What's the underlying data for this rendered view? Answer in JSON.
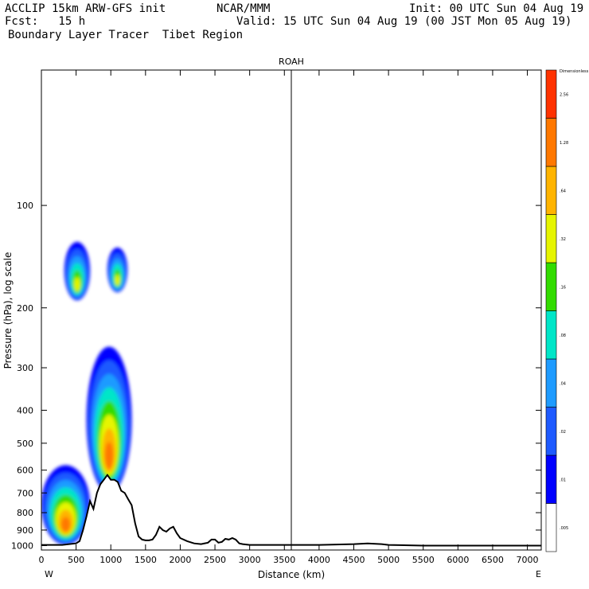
{
  "header": {
    "line1_left": "ACCLIP 15km ARW-GFS init",
    "line1_mid": "NCAR/MMM",
    "line1_right": "Init: 00 UTC Sun 04 Aug 19",
    "line2_left": "Fcst:   15 h",
    "line2_right": "Valid: 15 UTC Sun 04 Aug 19 (00 JST Mon 05 Aug 19)",
    "line3_left": "Boundary Layer Tracer  Tibet Region"
  },
  "chart_data": {
    "type": "heatmap",
    "title": "ROAH",
    "xlabel": "Distance (km)",
    "ylabel": "Pressure (hPa), log scale",
    "xlim": [
      0,
      7200
    ],
    "ylim": [
      1030,
      40
    ],
    "y_scale": "log",
    "x_ticks": [
      0,
      500,
      1000,
      1500,
      2000,
      2500,
      3000,
      3500,
      4000,
      4500,
      5000,
      5500,
      6000,
      6500,
      7000
    ],
    "y_ticks": [
      100,
      200,
      300,
      400,
      500,
      600,
      700,
      800,
      900,
      1000
    ],
    "x_end_labels": {
      "left": "W",
      "right": "E"
    },
    "marker_line_x": 3600,
    "colorbar": {
      "title": "Dimensionless",
      "levels": [
        ".005",
        ".01",
        ".02",
        ".04",
        ".08",
        ".16",
        ".32",
        ".64",
        "1.28",
        "2.56"
      ],
      "colors": [
        "#ffffff",
        "#0000ff",
        "#1e5aff",
        "#1e9bff",
        "#00e6c8",
        "#32dc00",
        "#e6f500",
        "#ffb400",
        "#ff7800",
        "#ff3200"
      ]
    },
    "terrain_surface": {
      "x": [
        0,
        100,
        200,
        300,
        400,
        500,
        550,
        600,
        650,
        700,
        750,
        800,
        850,
        900,
        950,
        1000,
        1050,
        1100,
        1150,
        1200,
        1250,
        1300,
        1350,
        1400,
        1450,
        1500,
        1550,
        1600,
        1650,
        1700,
        1750,
        1800,
        1850,
        1900,
        1950,
        2000,
        2100,
        2200,
        2300,
        2400,
        2450,
        2500,
        2550,
        2600,
        2650,
        2700,
        2750,
        2800,
        2850,
        2900,
        3000,
        3500,
        4000,
        4500,
        4700,
        4900,
        5000,
        5500,
        6000,
        6500,
        7000,
        7200
      ],
      "p": [
        995,
        995,
        995,
        995,
        990,
        985,
        970,
        900,
        820,
        740,
        780,
        700,
        660,
        640,
        620,
        640,
        640,
        650,
        690,
        700,
        730,
        760,
        860,
        940,
        960,
        965,
        965,
        960,
        930,
        880,
        900,
        910,
        890,
        880,
        920,
        950,
        970,
        985,
        990,
        980,
        960,
        960,
        980,
        975,
        955,
        960,
        950,
        960,
        985,
        990,
        995,
        995,
        995,
        990,
        985,
        990,
        995,
        1000,
        1000,
        1000,
        1000,
        1000
      ]
    },
    "tracer_regions": [
      {
        "name": "near-surface plume",
        "x": [
          0,
          700
        ],
        "p": [
          580,
          995
        ],
        "max_level": "1.28"
      },
      {
        "name": "elevated plume",
        "x": [
          650,
          1300
        ],
        "p": [
          260,
          700
        ],
        "max_level": "1.28"
      },
      {
        "name": "upper blob west",
        "x": [
          330,
          700
        ],
        "p": [
          128,
          190
        ],
        "max_level": ".32"
      },
      {
        "name": "upper blob east",
        "x": [
          950,
          1240
        ],
        "p": [
          133,
          180
        ],
        "max_level": ".32"
      }
    ]
  }
}
